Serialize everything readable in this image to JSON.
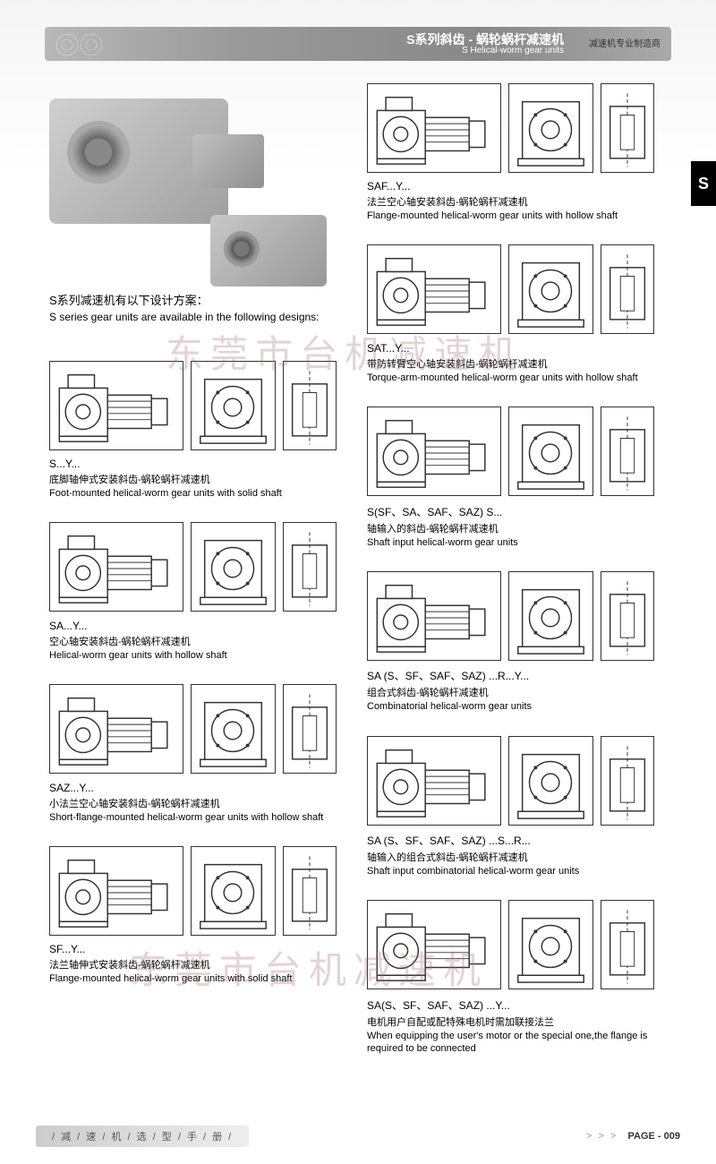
{
  "header": {
    "title_cn": "S系列斜齿 - 蜗轮蜗杆减速机",
    "title_en": "S Helical-worm gear units",
    "subtitle": "减速机专业制造商"
  },
  "side_tab": "S",
  "intro": {
    "cn": "S系列减速机有以下设计方案：",
    "en": "S series gear units are available in the following designs:"
  },
  "watermark": "东莞市台机减速机",
  "left_items": [
    {
      "code": "S...Y...",
      "cn": "底脚轴伸式安装斜齿-蜗轮蜗杆减速机",
      "en": "Foot-mounted helical-worm gear units with solid shaft"
    },
    {
      "code": "SA...Y...",
      "cn": "空心轴安装斜齿-蜗轮蜗杆减速机",
      "en": "Helical-worm gear units with hollow shaft"
    },
    {
      "code": "SAZ...Y...",
      "cn": "小法兰空心轴安装斜齿-蜗轮蜗杆减速机",
      "en": "Short-flange-mounted helical-worm gear units with hollow shaft"
    },
    {
      "code": "SF...Y...",
      "cn": "法兰轴伸式安装斜齿-蜗轮蜗杆减速机",
      "en": "Flange-mounted helical-worm gear units with solid shaft"
    }
  ],
  "right_items": [
    {
      "code": "SAF...Y...",
      "cn": "法兰空心轴安装斜齿-蜗轮蜗杆减速机",
      "en": "Flange-mounted helical-worm gear units with hollow shaft"
    },
    {
      "code": "SAT...Y...",
      "cn": "带防转臂空心轴安装斜齿-蜗轮蜗杆减速机",
      "en": "Torque-arm-mounted helical-worm gear units with hollow shaft"
    },
    {
      "code": "S(SF、SA、SAF、SAZ) S...",
      "cn": "轴输入的斜齿-蜗轮蜗杆减速机",
      "en": "Shaft input helical-worm gear units"
    },
    {
      "code": "SA (S、SF、SAF、SAZ) ...R...Y...",
      "cn": "组合式斜齿-蜗轮蜗杆减速机",
      "en": "Combinatorial helical-worm gear units"
    },
    {
      "code": "SA (S、SF、SAF、SAZ) ...S...R...",
      "cn": "轴输入的组合式斜齿-蜗轮蜗杆减速机",
      "en": "Shaft input combinatorial helical-worm gear units"
    },
    {
      "code": "SA(S、SF、SAF、SAZ) ...Y...",
      "cn": "电机用户自配或配特殊电机时需加联接法兰",
      "en": "When equipping the user's motor or the special one,the flange is required to be connected"
    }
  ],
  "footer": {
    "left": "/ 减 / 速 / 机 / 选 / 型 / 手 / 册 /",
    "arrows": "> > >",
    "page_label": "PAGE - 009"
  },
  "colors": {
    "header_bg": "#9a9a9a",
    "text": "#000000",
    "watermark": "rgba(160,100,100,0.28)",
    "side_tab_bg": "#000000"
  }
}
